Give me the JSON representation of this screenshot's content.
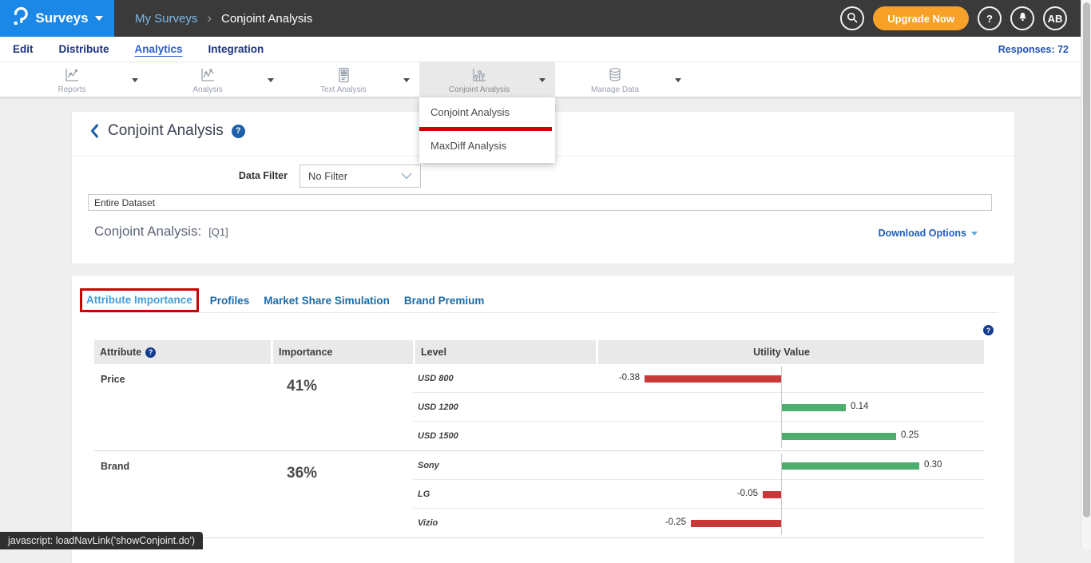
{
  "topbar": {
    "brand": "Surveys",
    "breadcrumb": {
      "parent": "My Surveys",
      "separator": "›",
      "current": "Conjoint Analysis"
    },
    "upgrade_label": "Upgrade Now",
    "help_label": "?",
    "avatar_initials": "AB"
  },
  "nav": {
    "items": [
      "Edit",
      "Distribute",
      "Analytics",
      "Integration"
    ],
    "active_item": "Analytics",
    "responses": "Responses: 72"
  },
  "toolbar": {
    "items": [
      {
        "label": "Reports",
        "icon": "line-chart-icon"
      },
      {
        "label": "Analysis",
        "icon": "trend-chart-icon"
      },
      {
        "label": "Text Analysis",
        "icon": "text-document-icon"
      },
      {
        "label": "Conjoint Analysis",
        "icon": "scatter-chart-icon",
        "active": true
      },
      {
        "label": "Manage Data",
        "icon": "database-icon"
      }
    ]
  },
  "conjoint_menu": {
    "items": [
      "Conjoint Analysis",
      "MaxDiff Analysis"
    ],
    "annotated_item": "Conjoint Analysis",
    "annotation_color": "#CC0000"
  },
  "content": {
    "page_title": "Conjoint Analysis",
    "data_filter_label": "Data Filter",
    "data_filter_value": "No Filter",
    "dataset_field_value": "Entire Dataset",
    "section_title": "Conjoint Analysis:",
    "section_question_ref": "[Q1]",
    "download_options_label": "Download Options"
  },
  "tabs": {
    "items": [
      "Attribute Importance",
      "Profiles",
      "Market Share Simulation",
      "Brand Premium"
    ],
    "active_item": "Attribute Importance",
    "annotation_color": "#CC0000"
  },
  "table": {
    "headers": [
      "Attribute",
      "Importance",
      "Level",
      "Utility Value"
    ]
  },
  "chart_data": {
    "type": "bar",
    "orientation": "horizontal",
    "value_label": "Utility Value",
    "positive_color": "#4DAE6E",
    "negative_color": "#C83A3A",
    "value_range": [
      -0.5,
      0.44
    ],
    "grid": false,
    "groups": [
      {
        "attribute": "Price",
        "importance": "41%",
        "levels": [
          {
            "name": "USD 800",
            "utility": -0.38
          },
          {
            "name": "USD 1200",
            "utility": 0.14
          },
          {
            "name": "USD 1500",
            "utility": 0.25
          }
        ]
      },
      {
        "attribute": "Brand",
        "importance": "36%",
        "levels": [
          {
            "name": "Sony",
            "utility": 0.3
          },
          {
            "name": "LG",
            "utility": -0.05
          },
          {
            "name": "Vizio",
            "utility": -0.25
          }
        ]
      }
    ]
  },
  "statusbar": {
    "text": "javascript: loadNavLink('showConjoint.do')"
  }
}
